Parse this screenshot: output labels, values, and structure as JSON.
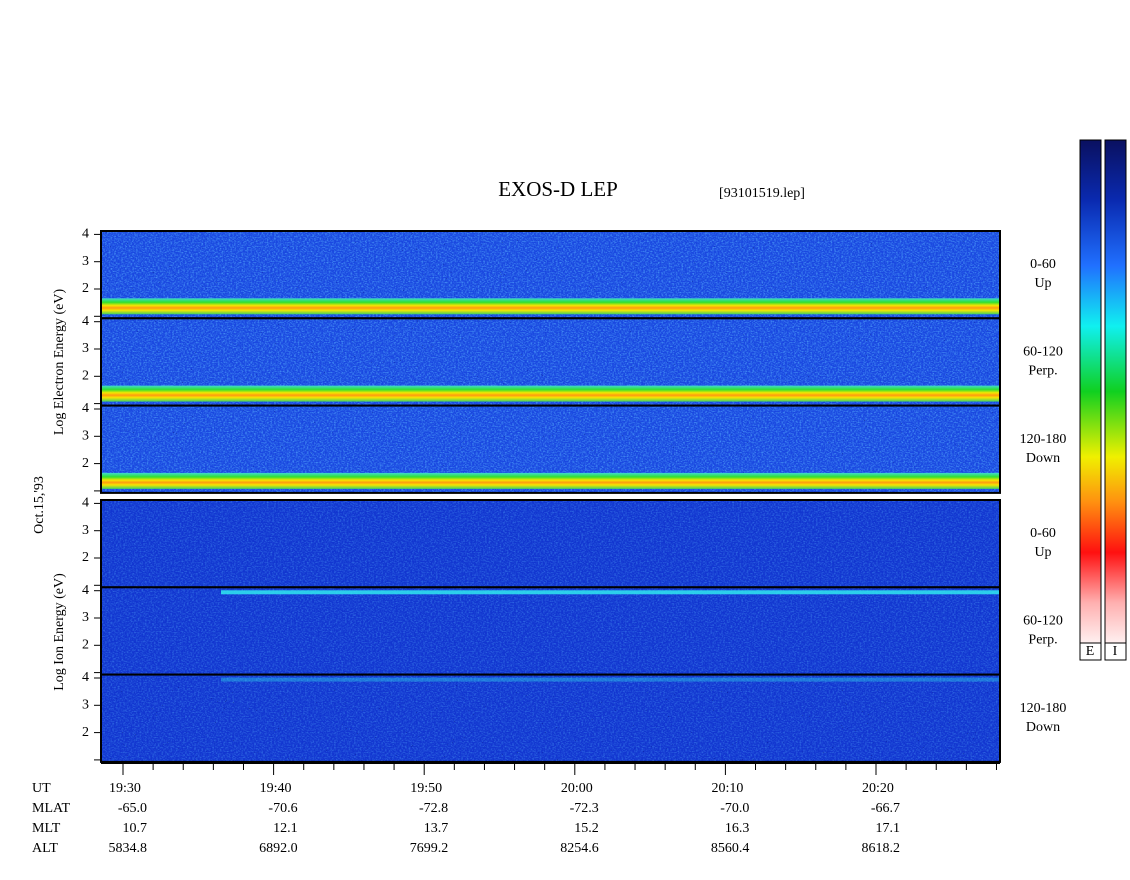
{
  "title": "EXOS-D LEP",
  "file": "[93101519.lep]",
  "date": "Oct.15,'93",
  "y_tick_labels": [
    "4",
    "3",
    "2"
  ],
  "electron": {
    "axis_label": "Log Electron Energy (eV)",
    "panels": [
      {
        "angle": "0-60",
        "direction": "Up"
      },
      {
        "angle": "60-120",
        "direction": "Perp."
      },
      {
        "angle": "120-180",
        "direction": "Down"
      }
    ]
  },
  "ion": {
    "axis_label": "Log Ion Energy (eV)",
    "panels": [
      {
        "angle": "0-60",
        "direction": "Up"
      },
      {
        "angle": "60-120",
        "direction": "Perp."
      },
      {
        "angle": "120-180",
        "direction": "Down"
      }
    ]
  },
  "ephemeris": {
    "labels": [
      "UT",
      "MLAT",
      "MLT",
      "ALT"
    ],
    "columns": [
      [
        "19:30",
        "-65.0",
        "10.7",
        "5834.8"
      ],
      [
        "19:40",
        "-70.6",
        "12.1",
        "6892.0"
      ],
      [
        "19:50",
        "-72.8",
        "13.7",
        "7699.2"
      ],
      [
        "20:00",
        "-72.3",
        "15.2",
        "8254.6"
      ],
      [
        "20:10",
        "-70.0",
        "16.3",
        "8560.4"
      ],
      [
        "20:20",
        "-66.7",
        "17.1",
        "8618.2"
      ]
    ]
  },
  "colorbar_labels": [
    "E",
    "I"
  ]
}
